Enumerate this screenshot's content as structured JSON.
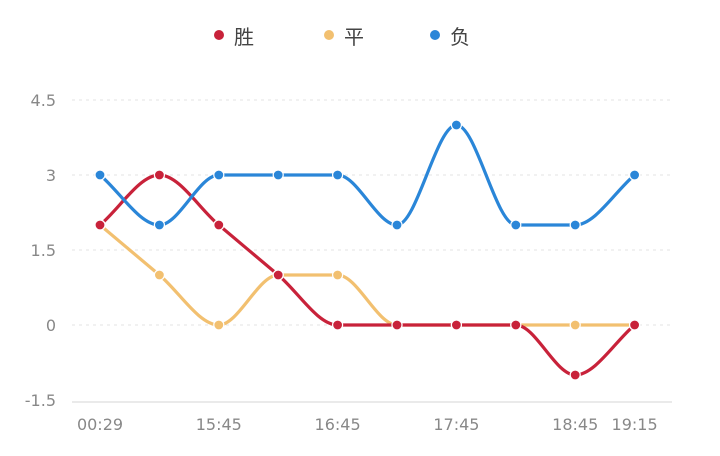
{
  "chart_data": {
    "type": "line",
    "smooth": true,
    "legend_position": "top-center",
    "grid": "horizontal-dashed",
    "x_tick_labels": [
      "00:29",
      "15:45",
      "16:45",
      "17:45",
      "18:45",
      "19:15"
    ],
    "y_ticks": [
      -1.5,
      0,
      1.5,
      3,
      4.5
    ],
    "ylim": [
      -1.5,
      4.5
    ],
    "points": 10,
    "series": [
      {
        "name": "胜",
        "color": "#c8223a",
        "values": [
          2,
          3,
          2,
          1,
          0,
          0,
          0,
          0,
          -1,
          0
        ]
      },
      {
        "name": "平",
        "color": "#f2c070",
        "values": [
          2,
          1,
          0,
          1,
          1,
          0,
          0,
          0,
          0,
          0
        ]
      },
      {
        "name": "负",
        "color": "#2a86d8",
        "values": [
          3,
          2,
          3,
          3,
          3,
          2,
          4,
          2,
          2,
          3
        ]
      }
    ]
  }
}
